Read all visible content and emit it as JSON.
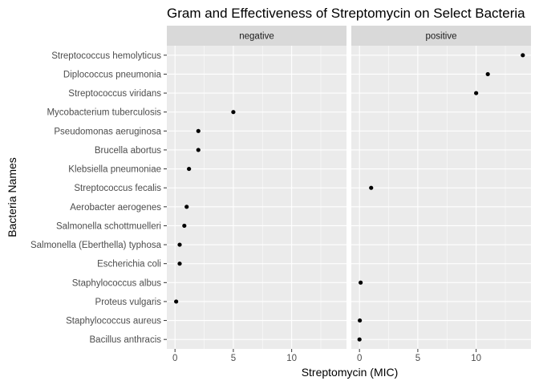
{
  "chart_data": {
    "type": "scatter",
    "title": "Gram and Effectiveness of Streptomycin on Select Bacteria",
    "xlabel": "Streptomycin (MIC)",
    "ylabel": "Bacteria Names",
    "xlim": [
      -0.7,
      14.7
    ],
    "xticks": [
      0,
      5,
      10
    ],
    "grid": true,
    "facet_by": "Gram",
    "categories": [
      "Bacillus anthracis",
      "Staphylococcus aureus",
      "Proteus vulgaris",
      "Staphylococcus albus",
      "Escherichia coli",
      "Salmonella (Eberthella) typhosa",
      "Salmonella schottmuelleri",
      "Aerobacter aerogenes",
      "Streptococcus fecalis",
      "Klebsiella pneumoniae",
      "Brucella abortus",
      "Pseudomonas aeruginosa",
      "Mycobacterium tuberculosis",
      "Streptococcus viridans",
      "Diplococcus pneumonia",
      "Streptococcus hemolyticus"
    ],
    "panels": [
      {
        "label": "negative",
        "points": [
          {
            "name": "Mycobacterium tuberculosis",
            "value": 5
          },
          {
            "name": "Pseudomonas aeruginosa",
            "value": 2
          },
          {
            "name": "Brucella abortus",
            "value": 2
          },
          {
            "name": "Klebsiella pneumoniae",
            "value": 1.2
          },
          {
            "name": "Aerobacter aerogenes",
            "value": 1
          },
          {
            "name": "Salmonella schottmuelleri",
            "value": 0.8
          },
          {
            "name": "Salmonella (Eberthella) typhosa",
            "value": 0.4
          },
          {
            "name": "Escherichia coli",
            "value": 0.4
          },
          {
            "name": "Proteus vulgaris",
            "value": 0.1
          }
        ]
      },
      {
        "label": "positive",
        "points": [
          {
            "name": "Streptococcus hemolyticus",
            "value": 14
          },
          {
            "name": "Diplococcus pneumonia",
            "value": 11
          },
          {
            "name": "Streptococcus viridans",
            "value": 10
          },
          {
            "name": "Streptococcus fecalis",
            "value": 1
          },
          {
            "name": "Staphylococcus albus",
            "value": 0.1
          },
          {
            "name": "Staphylococcus aureus",
            "value": 0.03
          },
          {
            "name": "Bacillus anthracis",
            "value": 0.001
          }
        ]
      }
    ]
  },
  "style": {
    "panel_bg": "#ebebeb",
    "strip_bg": "#d9d9d9",
    "grid_major": "#ffffff",
    "point_color": "#000000"
  }
}
